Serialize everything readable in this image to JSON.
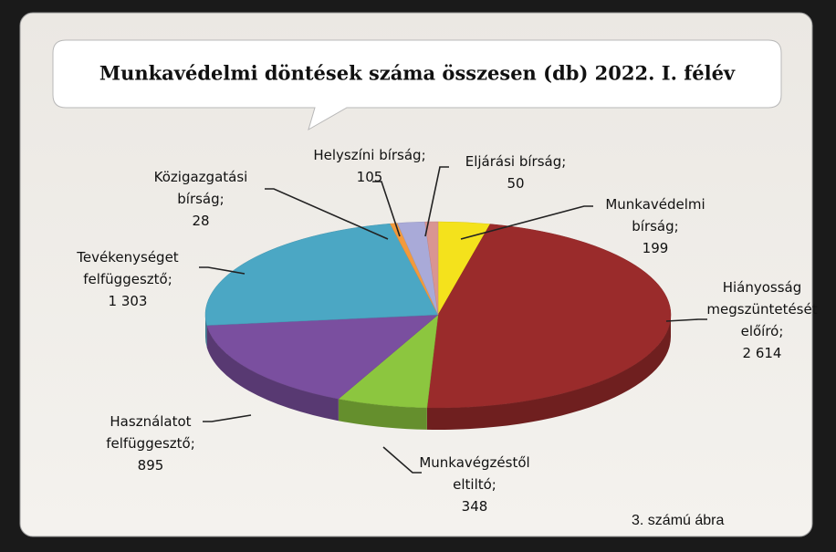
{
  "chart_data": {
    "type": "pie",
    "title": "Munkavédelmi döntések száma összesen (db)  2022. I. félév",
    "caption": "3. számú ábra",
    "categories": [
      "Munkavédelmi bírság;",
      "Hiányosság megszüntetését előíró;",
      "Munkavégzéstől eltiltó;",
      "Használatot felfüggesztő;",
      "Tevékenységet felfüggesztő;",
      "Közigazgatási bírság;",
      "Helyszíni bírság;",
      "Eljárási bírság;"
    ],
    "values": [
      199,
      2614,
      348,
      895,
      1303,
      28,
      105,
      50
    ],
    "value_labels": [
      "199",
      "2 614",
      "348",
      "895",
      "1 303",
      "28",
      "105",
      "50"
    ],
    "colors": [
      "#f4e21c",
      "#9a2b2b",
      "#8cc63f",
      "#7a4f9f",
      "#4ba7c4",
      "#f39a3c",
      "#a9aad8",
      "#d99592"
    ]
  }
}
